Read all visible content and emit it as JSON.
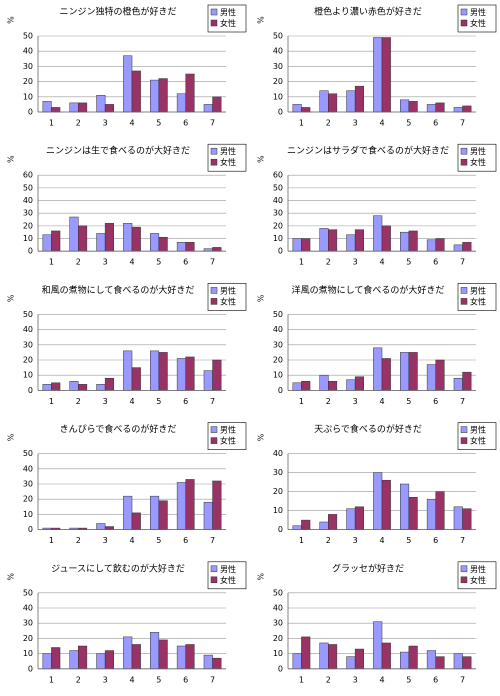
{
  "chart_data": [
    {
      "type": "bar",
      "title": "ニンジン独特の橙色が好きだ",
      "y_label": "%",
      "categories": [
        "1",
        "2",
        "3",
        "4",
        "5",
        "6",
        "7"
      ],
      "series": [
        {
          "name": "男性",
          "color": "#9999ff",
          "values": [
            7,
            6,
            11,
            37,
            21,
            12,
            5
          ]
        },
        {
          "name": "女性",
          "color": "#993366",
          "values": [
            3,
            6,
            5,
            27,
            22,
            25,
            10
          ]
        }
      ],
      "ylim": [
        0,
        50
      ],
      "yticks": [
        0,
        10,
        20,
        30,
        40,
        50
      ],
      "grid": true,
      "legend": "right"
    },
    {
      "type": "bar",
      "title": "橙色より濃い赤色が好きだ",
      "y_label": "%",
      "categories": [
        "1",
        "2",
        "3",
        "4",
        "5",
        "6",
        "7"
      ],
      "series": [
        {
          "name": "男性",
          "color": "#9999ff",
          "values": [
            5,
            14,
            14,
            49,
            8,
            5,
            3
          ]
        },
        {
          "name": "女性",
          "color": "#993366",
          "values": [
            3,
            12,
            17,
            49,
            7,
            6,
            4
          ]
        }
      ],
      "ylim": [
        0,
        50
      ],
      "yticks": [
        0,
        10,
        20,
        30,
        40,
        50
      ],
      "grid": true,
      "legend": "right"
    },
    {
      "type": "bar",
      "title": "ニンジンは生で食べるのが大好きだ",
      "y_label": "%",
      "categories": [
        "1",
        "2",
        "3",
        "4",
        "5",
        "6",
        "7"
      ],
      "series": [
        {
          "name": "男性",
          "color": "#9999ff",
          "values": [
            13,
            27,
            14,
            22,
            14,
            7,
            2
          ]
        },
        {
          "name": "女性",
          "color": "#993366",
          "values": [
            16,
            20,
            22,
            19,
            11,
            7,
            3
          ]
        }
      ],
      "ylim": [
        0,
        60
      ],
      "yticks": [
        0,
        10,
        20,
        30,
        40,
        50,
        60
      ],
      "grid": true,
      "legend": "right"
    },
    {
      "type": "bar",
      "title": "ニンジンはサラダで食べるのが大好きだ",
      "y_label": "%",
      "categories": [
        "1",
        "2",
        "3",
        "4",
        "5",
        "6",
        "7"
      ],
      "series": [
        {
          "name": "男性",
          "color": "#9999ff",
          "values": [
            10,
            18,
            13,
            28,
            15,
            9,
            5
          ]
        },
        {
          "name": "女性",
          "color": "#993366",
          "values": [
            10,
            17,
            17,
            20,
            16,
            10,
            7
          ]
        }
      ],
      "ylim": [
        0,
        60
      ],
      "yticks": [
        0,
        10,
        20,
        30,
        40,
        50,
        60
      ],
      "grid": true,
      "legend": "right"
    },
    {
      "type": "bar",
      "title": "和風の煮物にして食べるのが大好きだ",
      "y_label": "%",
      "categories": [
        "1",
        "2",
        "3",
        "4",
        "5",
        "6",
        "7"
      ],
      "series": [
        {
          "name": "男性",
          "color": "#9999ff",
          "values": [
            4,
            6,
            4,
            26,
            26,
            21,
            13
          ]
        },
        {
          "name": "女性",
          "color": "#993366",
          "values": [
            5,
            4,
            8,
            15,
            25,
            22,
            20
          ]
        }
      ],
      "ylim": [
        0,
        50
      ],
      "yticks": [
        0,
        10,
        20,
        30,
        40,
        50
      ],
      "grid": true,
      "legend": "right"
    },
    {
      "type": "bar",
      "title": "洋風の煮物にして食べるのが大好きだ",
      "y_label": "%",
      "categories": [
        "1",
        "2",
        "3",
        "4",
        "5",
        "6",
        "7"
      ],
      "series": [
        {
          "name": "男性",
          "color": "#9999ff",
          "values": [
            5,
            10,
            7,
            28,
            25,
            17,
            8
          ]
        },
        {
          "name": "女性",
          "color": "#993366",
          "values": [
            6,
            6,
            9,
            21,
            25,
            20,
            12
          ]
        }
      ],
      "ylim": [
        0,
        50
      ],
      "yticks": [
        0,
        10,
        20,
        30,
        40,
        50
      ],
      "grid": true,
      "legend": "right"
    },
    {
      "type": "bar",
      "title": "きんぴらで食べるのが好きだ",
      "y_label": "%",
      "categories": [
        "1",
        "2",
        "3",
        "4",
        "5",
        "6",
        "7"
      ],
      "series": [
        {
          "name": "男性",
          "color": "#9999ff",
          "values": [
            1,
            1,
            4,
            22,
            22,
            31,
            18
          ]
        },
        {
          "name": "女性",
          "color": "#993366",
          "values": [
            1,
            1,
            2,
            11,
            19,
            33,
            32
          ]
        }
      ],
      "ylim": [
        0,
        50
      ],
      "yticks": [
        0,
        10,
        20,
        30,
        40,
        50
      ],
      "grid": true,
      "legend": "right"
    },
    {
      "type": "bar",
      "title": "天ぷらで食べるのが好きだ",
      "y_label": "%",
      "categories": [
        "1",
        "2",
        "3",
        "4",
        "5",
        "6",
        "7"
      ],
      "series": [
        {
          "name": "男性",
          "color": "#9999ff",
          "values": [
            2,
            4,
            11,
            30,
            24,
            16,
            12
          ]
        },
        {
          "name": "女性",
          "color": "#993366",
          "values": [
            5,
            8,
            12,
            26,
            17,
            20,
            11
          ]
        }
      ],
      "ylim": [
        0,
        40
      ],
      "yticks": [
        0,
        10,
        20,
        30,
        40
      ],
      "grid": true,
      "legend": "right"
    },
    {
      "type": "bar",
      "title": "ジュースにして飲むのが大好きだ",
      "y_label": "%",
      "categories": [
        "1",
        "2",
        "3",
        "4",
        "5",
        "6",
        "7"
      ],
      "series": [
        {
          "name": "男性",
          "color": "#9999ff",
          "values": [
            10,
            12,
            10,
            21,
            24,
            15,
            9
          ]
        },
        {
          "name": "女性",
          "color": "#993366",
          "values": [
            14,
            15,
            12,
            16,
            19,
            16,
            7
          ]
        }
      ],
      "ylim": [
        0,
        50
      ],
      "yticks": [
        0,
        10,
        20,
        30,
        40,
        50
      ],
      "grid": true,
      "legend": "right"
    },
    {
      "type": "bar",
      "title": "グラッセが好きだ",
      "y_label": "%",
      "categories": [
        "1",
        "2",
        "3",
        "4",
        "5",
        "6",
        "7"
      ],
      "series": [
        {
          "name": "男性",
          "color": "#9999ff",
          "values": [
            10,
            17,
            8,
            31,
            11,
            12,
            10
          ]
        },
        {
          "name": "女性",
          "color": "#993366",
          "values": [
            21,
            16,
            13,
            17,
            15,
            8,
            8
          ]
        }
      ],
      "ylim": [
        0,
        50
      ],
      "yticks": [
        0,
        10,
        20,
        30,
        40,
        50
      ],
      "grid": true,
      "legend": "right"
    }
  ]
}
